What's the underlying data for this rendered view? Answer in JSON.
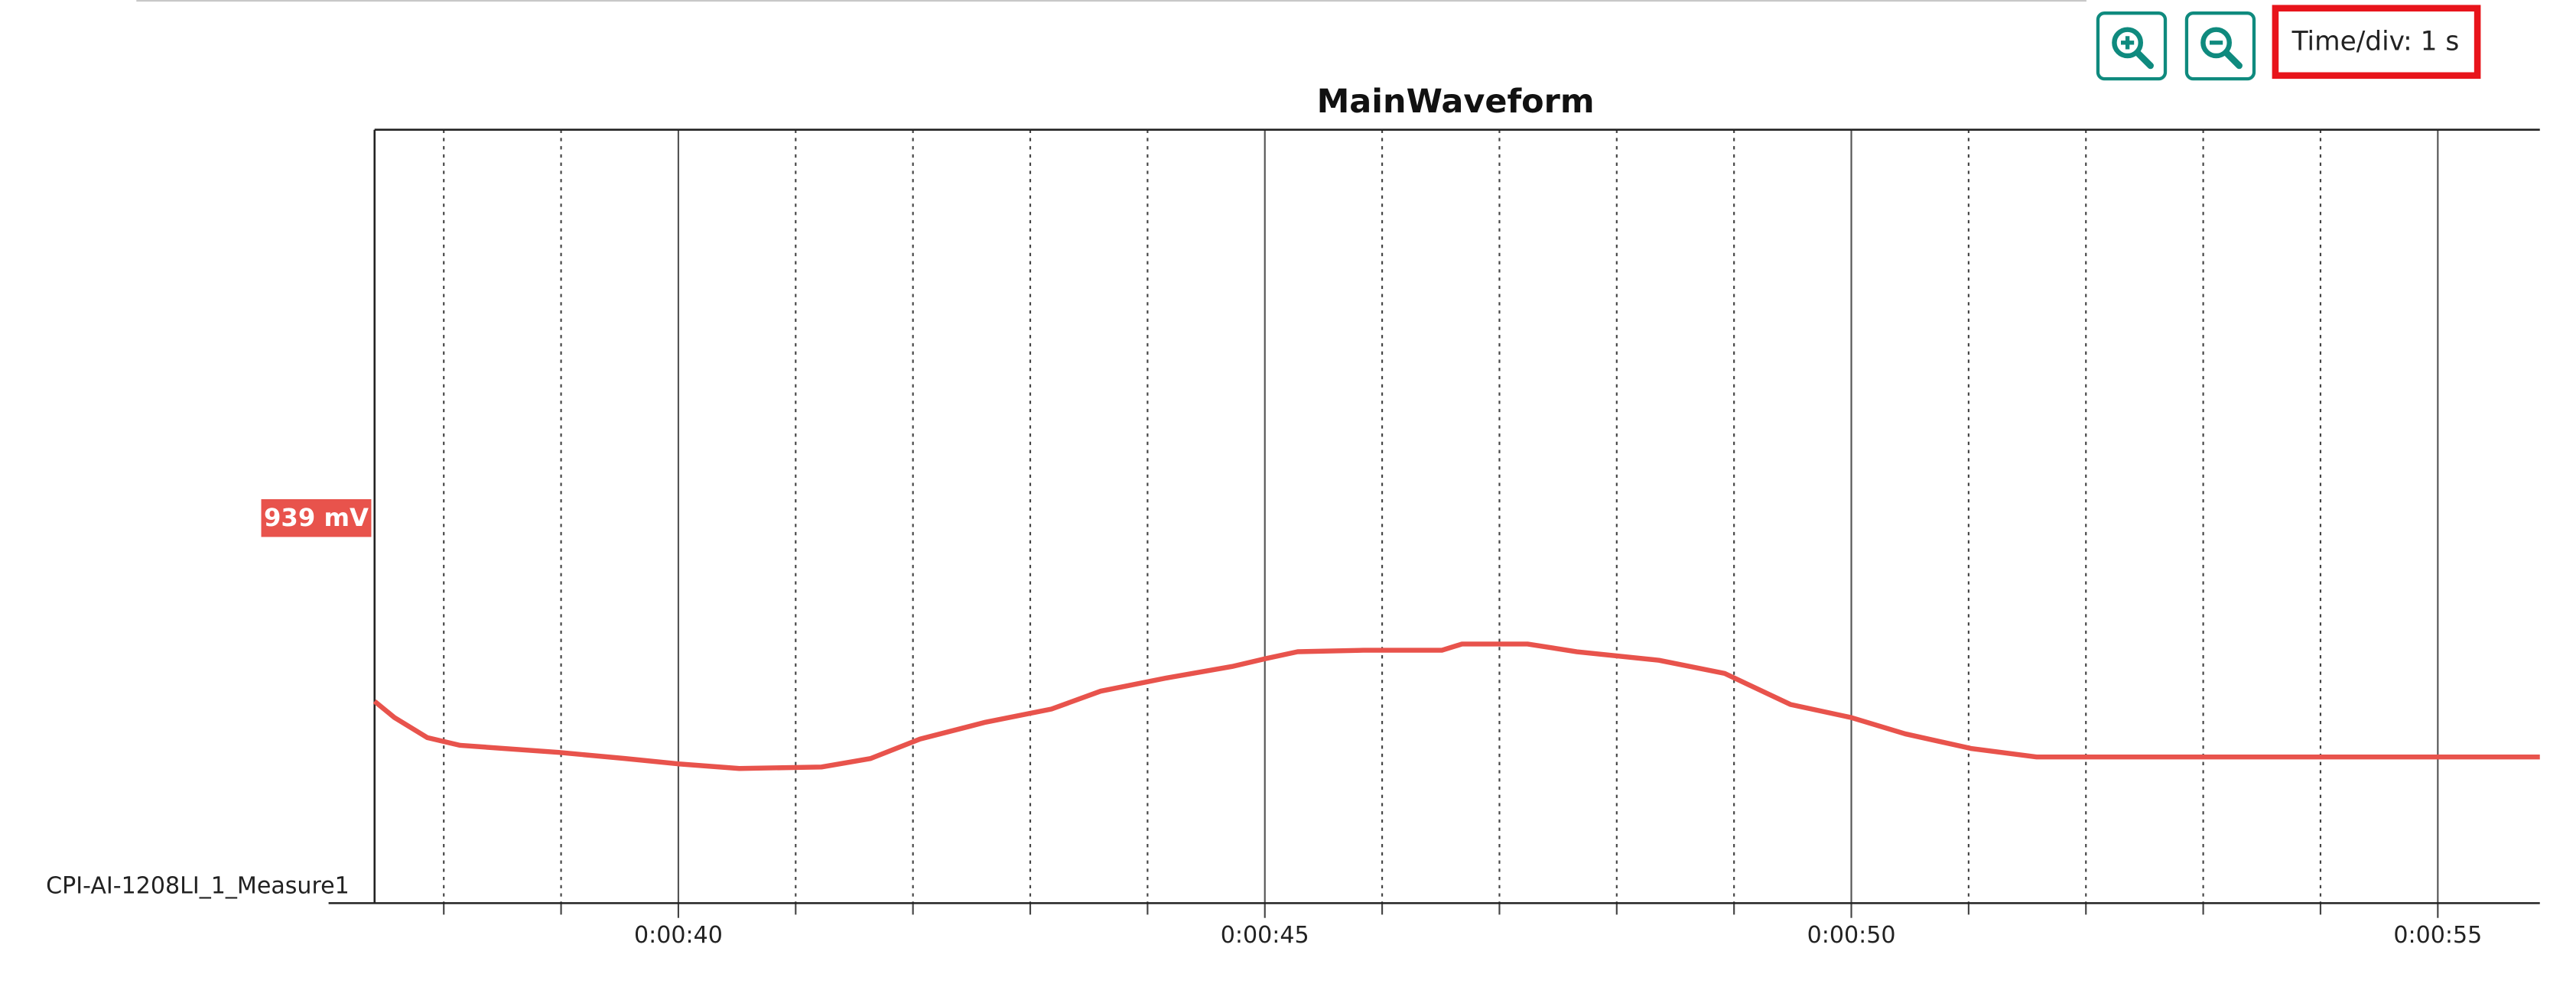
{
  "toolbar": {
    "time_div": "Time/div: 1 s"
  },
  "channel_label": "CPI-AI-1208LI_1_Measure1",
  "level_marker": "939 mV",
  "chart_data": {
    "type": "line",
    "title": "MainWaveform",
    "x": [
      37.41,
      37.58,
      37.86,
      38.14,
      38.98,
      39.54,
      40,
      40.52,
      41.22,
      41.64,
      42.06,
      42.62,
      43.18,
      43.6,
      44.16,
      44.72,
      45,
      45.28,
      45.84,
      46.51,
      46.68,
      47.24,
      47.66,
      48.36,
      48.92,
      49.48,
      50,
      50.46,
      51.02,
      51.58,
      55.87
    ],
    "series": [
      {
        "name": "CPI-AI-1208LI_1_Measure1",
        "color": "#e8534c",
        "values": [
          26.1,
          24.0,
          21.4,
          20.4,
          19.5,
          18.7,
          18.0,
          17.4,
          17.6,
          18.7,
          21.2,
          23.4,
          25.1,
          27.4,
          29.1,
          30.6,
          31.6,
          32.5,
          32.7,
          32.7,
          33.5,
          33.5,
          32.5,
          31.4,
          29.7,
          25.7,
          24.0,
          21.9,
          20.0,
          18.9,
          18.9
        ]
      }
    ],
    "xlim": [
      37.41,
      55.87
    ],
    "ylim": [
      0,
      100
    ],
    "xticks": [
      {
        "value": 40,
        "label": "0:00:40"
      },
      {
        "value": 45,
        "label": "0:00:45"
      },
      {
        "value": 50,
        "label": "0:00:50"
      },
      {
        "value": 55,
        "label": "0:00:55"
      }
    ],
    "minor_xticks": [
      38,
      39,
      41,
      42,
      43,
      44,
      46,
      47,
      48,
      49,
      51,
      52,
      53,
      54
    ],
    "grid": true
  }
}
